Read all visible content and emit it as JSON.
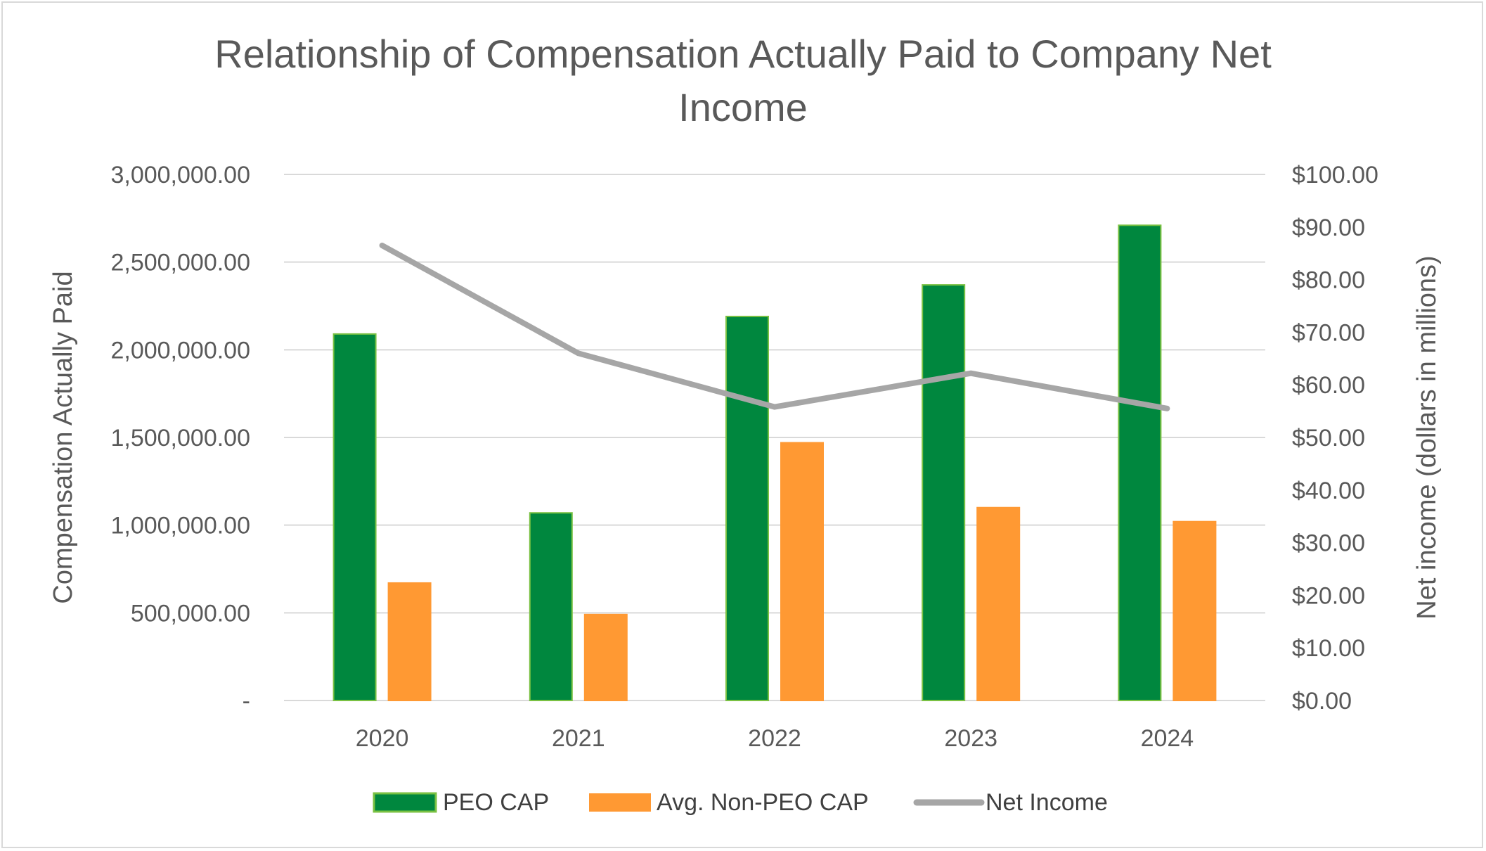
{
  "chart_data": {
    "type": "bar",
    "title_lines": [
      "Relationship of Compensation Actually Paid to Company Net",
      "Income"
    ],
    "categories": [
      "2020",
      "2021",
      "2022",
      "2023",
      "2024"
    ],
    "series": [
      {
        "name": "PEO CAP",
        "type": "bar",
        "axis": "left",
        "color": "#00873e",
        "edge_color": "#7ac143",
        "values": [
          2090000,
          1070000,
          2190000,
          2370000,
          2710000
        ]
      },
      {
        "name": "Avg. Non-PEO CAP",
        "type": "bar",
        "axis": "left",
        "color": "#ff9933",
        "edge_color": "#ff9933",
        "values": [
          670000,
          490000,
          1470000,
          1100000,
          1020000
        ]
      },
      {
        "name": "Net Income",
        "type": "line",
        "axis": "right",
        "color": "#a6a6a6",
        "values": [
          86.5,
          66.0,
          55.8,
          62.2,
          55.5
        ]
      }
    ],
    "y_left": {
      "label": "Compensation Actually Paid",
      "min": 0,
      "max": 3000000,
      "ticks": [
        0,
        500000,
        1000000,
        1500000,
        2000000,
        2500000,
        3000000
      ],
      "tick_labels": [
        "-",
        "500,000.00",
        "1,000,000.00",
        "1,500,000.00",
        "2,000,000.00",
        "2,500,000.00",
        "3,000,000.00"
      ]
    },
    "y_right": {
      "label": "Net income (dollars in millions)",
      "min": 0,
      "max": 100,
      "ticks": [
        0,
        10,
        20,
        30,
        40,
        50,
        60,
        70,
        80,
        90,
        100
      ],
      "tick_labels": [
        "$0.00",
        "$10.00",
        "$20.00",
        "$30.00",
        "$40.00",
        "$50.00",
        "$60.00",
        "$70.00",
        "$80.00",
        "$90.00",
        "$100.00"
      ]
    },
    "gridlines": true,
    "legend_position": "bottom",
    "grid_color": "#d9d9d9"
  }
}
